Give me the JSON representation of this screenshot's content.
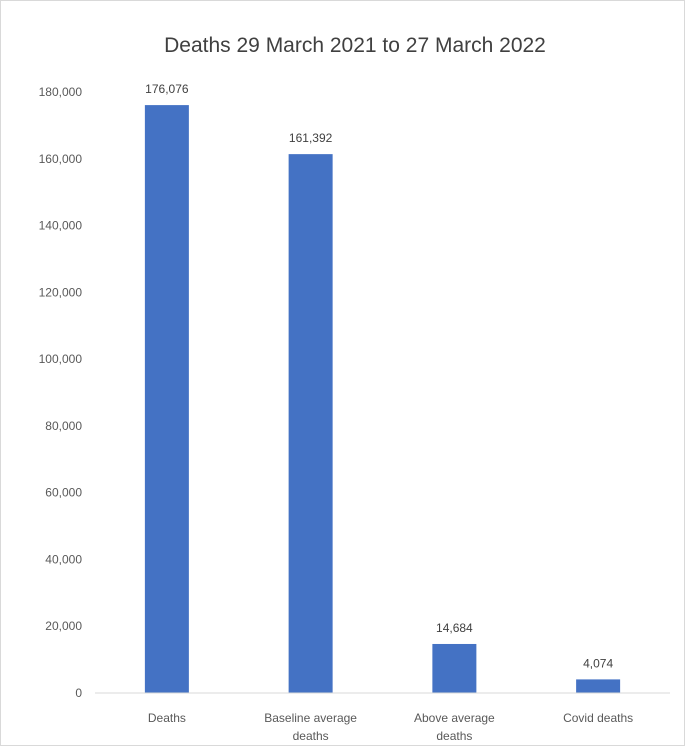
{
  "chart_data": {
    "type": "bar",
    "title": "Deaths 29 March 2021 to 27 March 2022",
    "xlabel": "",
    "ylabel": "",
    "categories": [
      [
        "Deaths"
      ],
      [
        "Baseline average",
        "deaths"
      ],
      [
        "Above average",
        "deaths"
      ],
      [
        "Covid deaths"
      ]
    ],
    "values": [
      176076,
      161392,
      14684,
      4074
    ],
    "data_labels": [
      "176,076",
      "161,392",
      "14,684",
      "4,074"
    ],
    "y_ticks": [
      {
        "value": 0,
        "label": "0"
      },
      {
        "value": 20000,
        "label": "20,000"
      },
      {
        "value": 40000,
        "label": "40,000"
      },
      {
        "value": 60000,
        "label": "60,000"
      },
      {
        "value": 80000,
        "label": "80,000"
      },
      {
        "value": 100000,
        "label": "100,000"
      },
      {
        "value": 120000,
        "label": "120,000"
      },
      {
        "value": 140000,
        "label": "140,000"
      },
      {
        "value": 160000,
        "label": "160,000"
      },
      {
        "value": 180000,
        "label": "180,000"
      }
    ],
    "ylim": [
      0,
      180000
    ],
    "grid": false,
    "legend": "none",
    "bar_color": "#4472c4",
    "axis_color": "#d9d9d9"
  }
}
